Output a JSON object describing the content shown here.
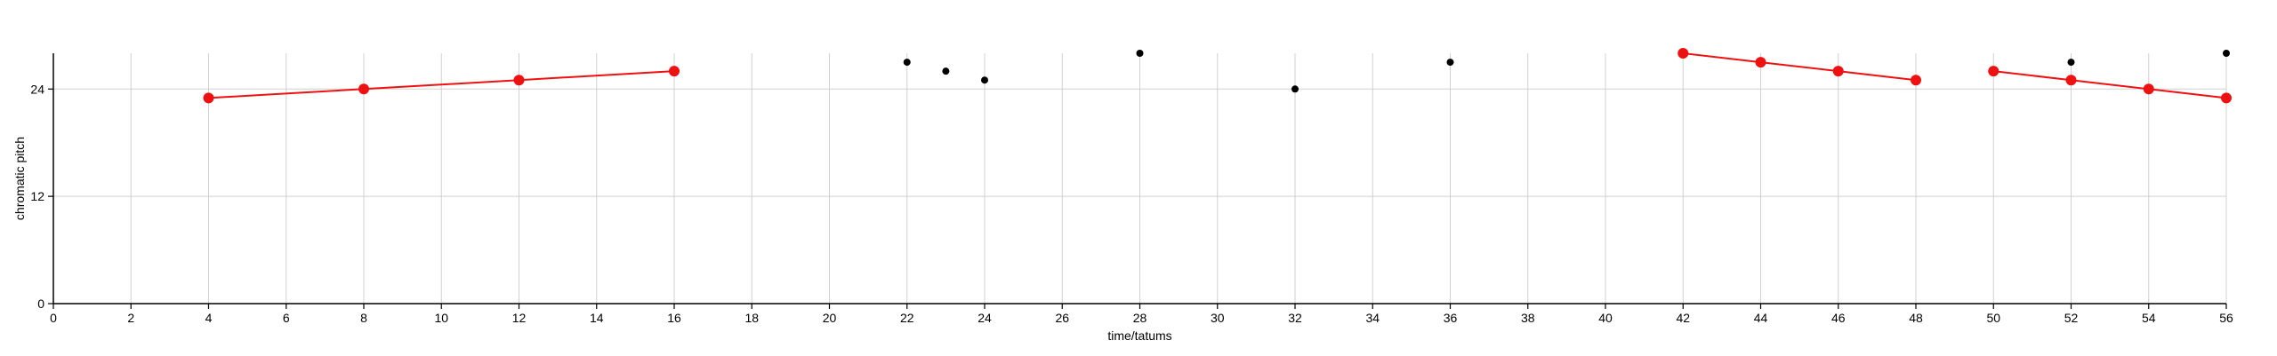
{
  "chart_data": {
    "type": "scatter",
    "xlabel": "time/tatums",
    "ylabel": "chromatic pitch",
    "xlim": [
      0,
      56
    ],
    "ylim": [
      0,
      28
    ],
    "xticks": [
      0,
      2,
      4,
      6,
      8,
      10,
      12,
      14,
      16,
      18,
      20,
      22,
      24,
      26,
      28,
      30,
      32,
      34,
      36,
      38,
      40,
      42,
      44,
      46,
      48,
      50,
      52,
      54,
      56
    ],
    "yticks": [
      0,
      12,
      24
    ],
    "grid": true,
    "colors": {
      "line_series": "#ee1111",
      "point_series": "#000000",
      "grid": "#d0d0d0"
    },
    "line_segments": [
      {
        "points": [
          [
            4,
            23
          ],
          [
            8,
            24
          ],
          [
            12,
            25
          ],
          [
            16,
            26
          ]
        ]
      },
      {
        "points": [
          [
            42,
            28
          ],
          [
            44,
            27
          ],
          [
            46,
            26
          ],
          [
            48,
            25
          ]
        ]
      },
      {
        "points": [
          [
            50,
            26
          ],
          [
            52,
            25
          ],
          [
            54,
            24
          ],
          [
            56,
            23
          ]
        ]
      }
    ],
    "points": [
      [
        22,
        27
      ],
      [
        23,
        26
      ],
      [
        24,
        25
      ],
      [
        28,
        28
      ],
      [
        32,
        24
      ],
      [
        36,
        27
      ],
      [
        52,
        27
      ],
      [
        56,
        28
      ]
    ]
  }
}
